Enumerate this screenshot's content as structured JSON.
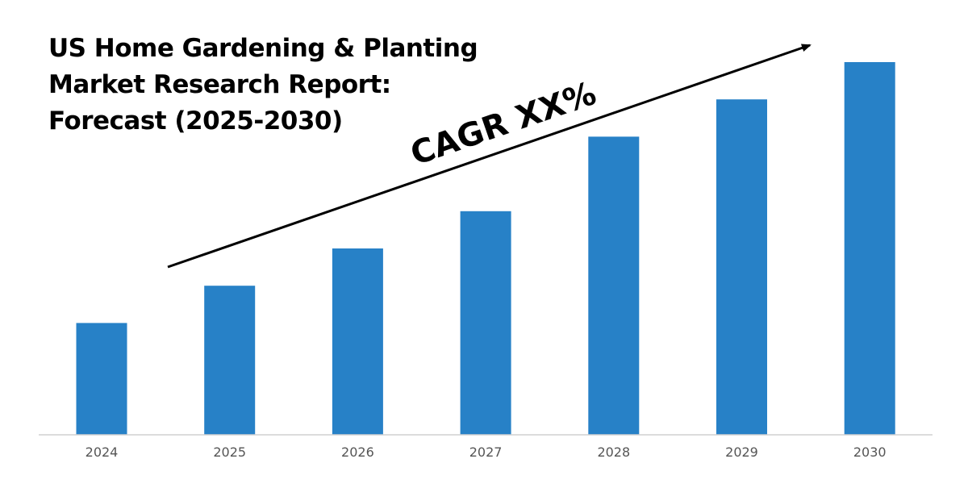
{
  "chart_data": {
    "type": "bar",
    "title": "US Home Gardening & Planting Market Research Report: Forecast (2025-2030)",
    "categories": [
      "2024",
      "2025",
      "2026",
      "2027",
      "2028",
      "2029",
      "2030"
    ],
    "values": [
      30,
      40,
      50,
      60,
      80,
      90,
      100
    ],
    "ylim": [
      0,
      100
    ],
    "xlabel": "",
    "ylabel": "",
    "grid": false,
    "bar_color": "#2781c7",
    "annotation": "CAGR XX%"
  }
}
